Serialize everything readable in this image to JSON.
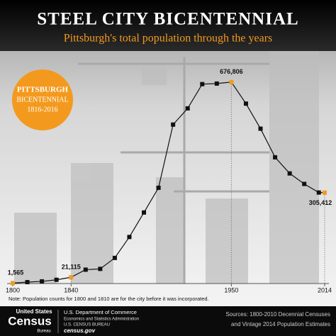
{
  "chart_data": {
    "type": "line",
    "title": "STEEL CITY BICENTENNIAL",
    "subtitle": "Pittsburgh's total population through the years",
    "badge": [
      "PITTSBURGH",
      "BICENTENNIAL",
      "1816-2016"
    ],
    "note": "Note: Population counts for 1800 and 1810 are for the city before it was incorporated.",
    "x": [
      1800,
      1810,
      1820,
      1830,
      1840,
      1850,
      1860,
      1870,
      1880,
      1890,
      1900,
      1910,
      1920,
      1930,
      1940,
      1950,
      1960,
      1970,
      1980,
      1990,
      2000,
      2010,
      2014
    ],
    "series": [
      {
        "color": "#111111",
        "values": [
          1565,
          4768,
          7248,
          12568,
          21115,
          46601,
          49221,
          86076,
          156389,
          238617,
          321616,
          533905,
          588343,
          669817,
          671659,
          676806,
          604332,
          520117,
          423938,
          369879,
          334563,
          305704,
          305412
        ],
        "value_labels": [
          "1,565",
          null,
          null,
          null,
          "21,115",
          null,
          null,
          null,
          null,
          null,
          null,
          null,
          null,
          null,
          null,
          "676,806",
          null,
          null,
          null,
          null,
          null,
          null,
          "305,412"
        ]
      }
    ],
    "highlight_color": "#f39a1e",
    "xlim": [
      1800,
      2014
    ],
    "xticks": [
      1800,
      1840,
      1950,
      2014
    ],
    "ylim": [
      0,
      700000
    ],
    "footer": {
      "logo": [
        "United States",
        "Census",
        "Bureau"
      ],
      "agency": [
        "U.S. Department of Commerce",
        "Economics and Statistics Administration",
        "U.S. CENSUS BUREAU",
        "census.gov"
      ],
      "sources": [
        "Sources: 1800-2010 Decennial Censuses",
        "and Vintage 2014 Population Estimates"
      ]
    }
  }
}
